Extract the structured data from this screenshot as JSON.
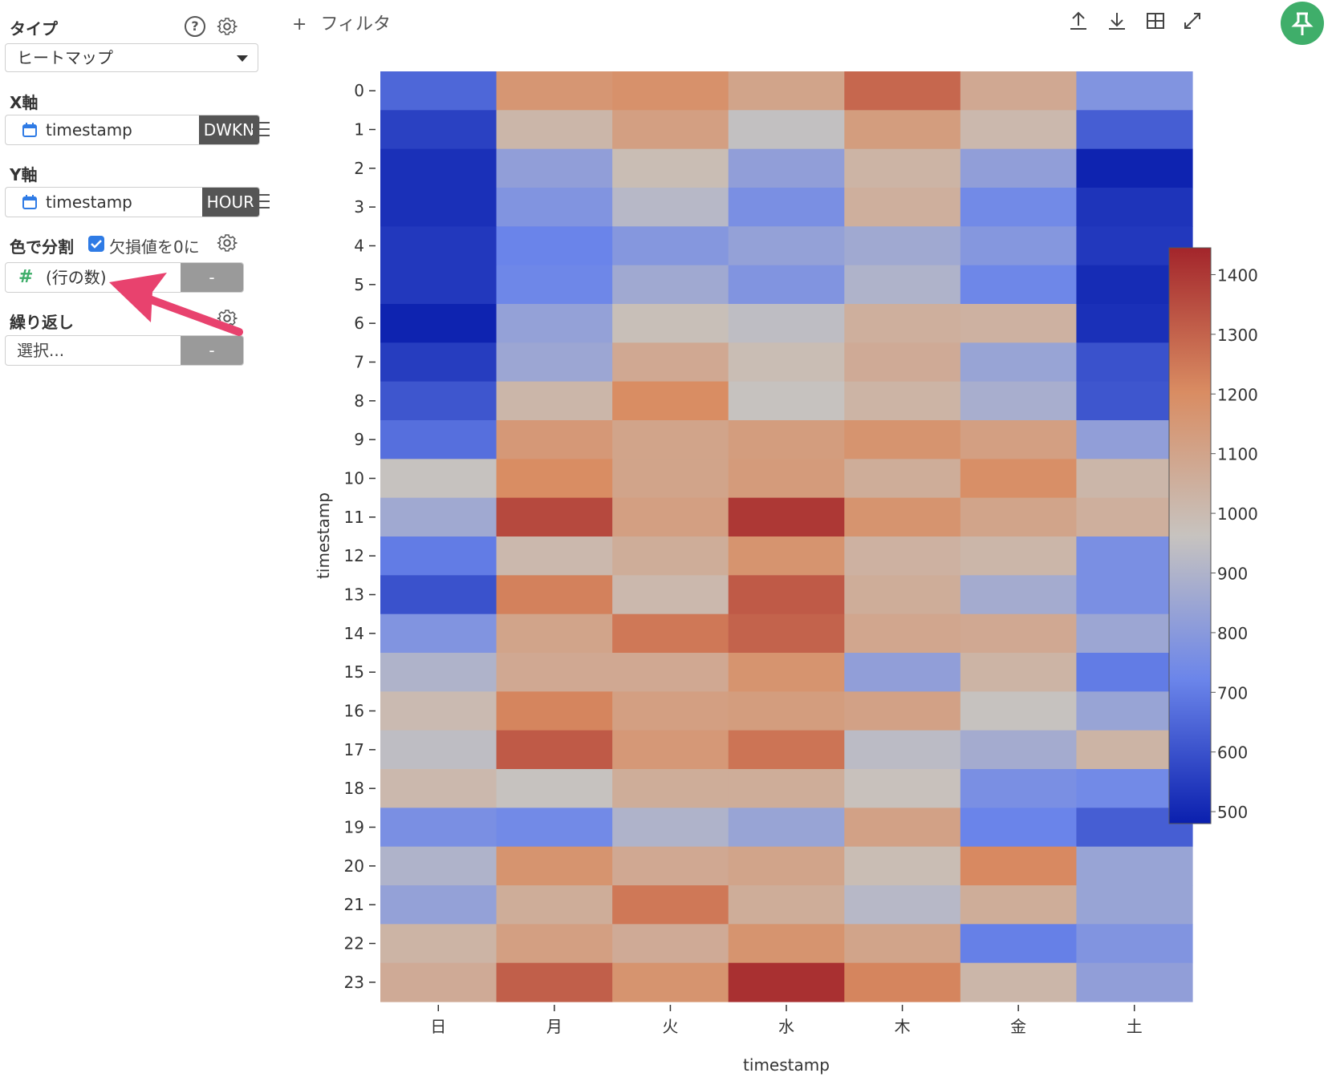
{
  "sidebar": {
    "type_label": "タイプ",
    "type_value": "ヒートマップ",
    "x_axis_label": "X軸",
    "x_field": "timestamp",
    "x_tag": "DWKN",
    "y_axis_label": "Y軸",
    "y_field": "timestamp",
    "y_tag": "HOUR",
    "color_label": "色で分割",
    "missing_zero_label": "欠損値を0に",
    "color_field_symbol": "#",
    "color_field": "(行の数)",
    "color_tag": "-",
    "repeat_label": "繰り返し",
    "repeat_placeholder": "選択...",
    "repeat_tag": "-",
    "help_glyph": "?"
  },
  "topbar": {
    "filter_label": "フィルタ",
    "add_glyph": "+"
  },
  "colors": {
    "accent_green": "#3fae6a",
    "arrow_pink": "#e8426e",
    "checkbox_blue": "#2f7be5"
  },
  "chart_data": {
    "type": "heatmap",
    "xlabel": "timestamp",
    "ylabel": "timestamp",
    "x_categories": [
      "日",
      "月",
      "火",
      "水",
      "木",
      "金",
      "土"
    ],
    "y_categories": [
      "0",
      "1",
      "2",
      "3",
      "4",
      "5",
      "6",
      "7",
      "8",
      "9",
      "10",
      "11",
      "12",
      "13",
      "14",
      "15",
      "16",
      "17",
      "18",
      "19",
      "20",
      "21",
      "22",
      "23"
    ],
    "values": [
      [
        650,
        1160,
        1180,
        1100,
        1290,
        1080,
        780
      ],
      [
        560,
        1020,
        1120,
        950,
        1130,
        1010,
        630
      ],
      [
        520,
        820,
        990,
        820,
        1030,
        820,
        490
      ],
      [
        520,
        780,
        920,
        760,
        1050,
        740,
        530
      ],
      [
        540,
        720,
        790,
        830,
        860,
        790,
        540
      ],
      [
        540,
        730,
        860,
        780,
        900,
        730,
        510
      ],
      [
        490,
        830,
        980,
        940,
        1050,
        1040,
        520
      ],
      [
        550,
        850,
        1080,
        990,
        1070,
        840,
        600
      ],
      [
        610,
        1020,
        1200,
        960,
        1030,
        880,
        610
      ],
      [
        670,
        1150,
        1100,
        1130,
        1170,
        1120,
        820
      ],
      [
        960,
        1200,
        1100,
        1140,
        1060,
        1190,
        1020
      ],
      [
        860,
        1360,
        1120,
        1400,
        1170,
        1100,
        1050
      ],
      [
        700,
        1010,
        1060,
        1170,
        1040,
        1020,
        760
      ],
      [
        600,
        1230,
        1010,
        1320,
        1060,
        870,
        760
      ],
      [
        780,
        1100,
        1250,
        1300,
        1090,
        1080,
        850
      ],
      [
        900,
        1080,
        1080,
        1170,
        820,
        1030,
        700
      ],
      [
        1000,
        1220,
        1120,
        1130,
        1110,
        960,
        840
      ],
      [
        940,
        1320,
        1150,
        1260,
        930,
        870,
        1030
      ],
      [
        1010,
        960,
        1060,
        1060,
        970,
        760,
        740
      ],
      [
        760,
        740,
        900,
        840,
        1110,
        720,
        630
      ],
      [
        900,
        1170,
        1080,
        1100,
        990,
        1210,
        840
      ],
      [
        830,
        1060,
        1250,
        1060,
        920,
        1060,
        840
      ],
      [
        1030,
        1120,
        1070,
        1170,
        1100,
        710,
        780
      ],
      [
        1070,
        1310,
        1170,
        1420,
        1220,
        1020,
        820
      ]
    ],
    "colorbar": {
      "min": 480,
      "max": 1445,
      "ticks": [
        "1400",
        "1300",
        "1200",
        "1100",
        "1000",
        "900",
        "800",
        "700",
        "600",
        "500"
      ]
    }
  }
}
